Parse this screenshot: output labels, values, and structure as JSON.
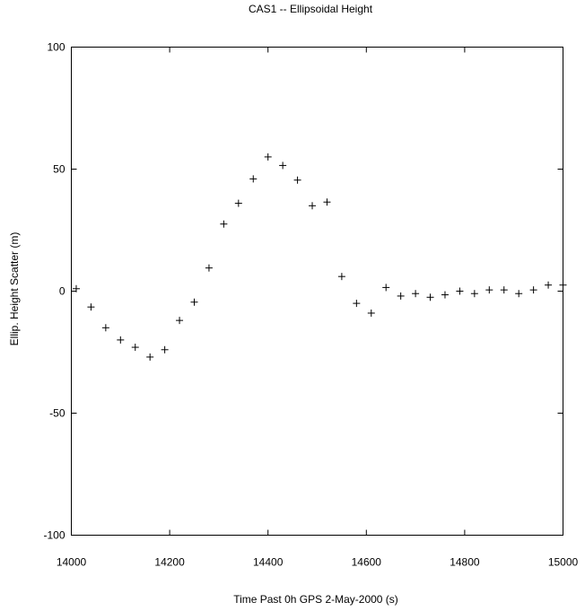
{
  "chart_data": {
    "type": "scatter",
    "title": "CAS1 -- Ellipsoidal Height",
    "xlabel": "Time Past 0h GPS 2-May-2000  (s)",
    "ylabel": "Ellip. Height Scatter  (m)",
    "xlim": [
      14000,
      15000
    ],
    "ylim": [
      -100,
      100
    ],
    "xticks": [
      14000,
      14200,
      14400,
      14600,
      14800,
      15000
    ],
    "yticks": [
      -100,
      -50,
      0,
      50,
      100
    ],
    "marker": "plus",
    "grid": false,
    "series": [
      {
        "x": [
          14010,
          14040,
          14070,
          14100,
          14130,
          14160,
          14190,
          14220,
          14250,
          14280,
          14310,
          14340,
          14370,
          14400,
          14430,
          14460,
          14490,
          14520,
          14550,
          14580,
          14610,
          14640,
          14670,
          14700,
          14730,
          14760,
          14790,
          14820,
          14850,
          14880,
          14910,
          14940,
          14970,
          15000
        ],
        "y": [
          1,
          -6.5,
          -15,
          -20,
          -23,
          -27,
          -24,
          -12,
          -4.5,
          9.5,
          27.5,
          36,
          46,
          55,
          51.5,
          45.5,
          35,
          36.5,
          6,
          -5,
          -9,
          1.5,
          -2,
          -1,
          -2.5,
          -1.5,
          0,
          -1,
          0.5,
          0.5,
          -1,
          0.5,
          2.5,
          2.5
        ]
      }
    ]
  }
}
